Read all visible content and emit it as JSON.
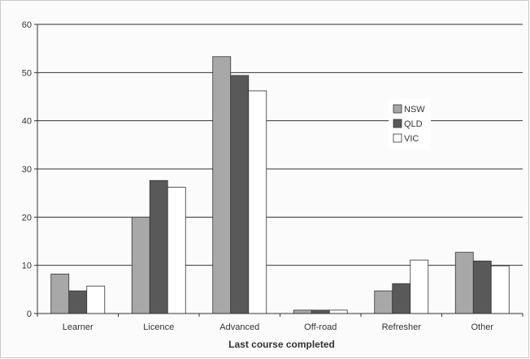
{
  "chart_data": {
    "type": "bar",
    "title": "",
    "xlabel": "Last course completed",
    "ylabel": "",
    "ylim": [
      0,
      60
    ],
    "yticks": [
      "0",
      "10",
      "20",
      "30",
      "40",
      "50",
      "60"
    ],
    "categories": [
      "Learner",
      "Licence",
      "Advanced",
      "Off-road",
      "Refresher",
      "Other"
    ],
    "series": [
      {
        "name": "NSW",
        "color": "#a8a8a8",
        "values": [
          8.2,
          20.0,
          53.3,
          0.7,
          4.7,
          12.7
        ]
      },
      {
        "name": "QLD",
        "color": "#595959",
        "values": [
          4.7,
          27.6,
          49.4,
          0.7,
          6.2,
          10.9
        ]
      },
      {
        "name": "VIC",
        "color": "#ffffff",
        "values": [
          5.7,
          26.2,
          46.2,
          0.7,
          11.1,
          9.9
        ]
      }
    ],
    "grid": true,
    "legend": "right"
  }
}
